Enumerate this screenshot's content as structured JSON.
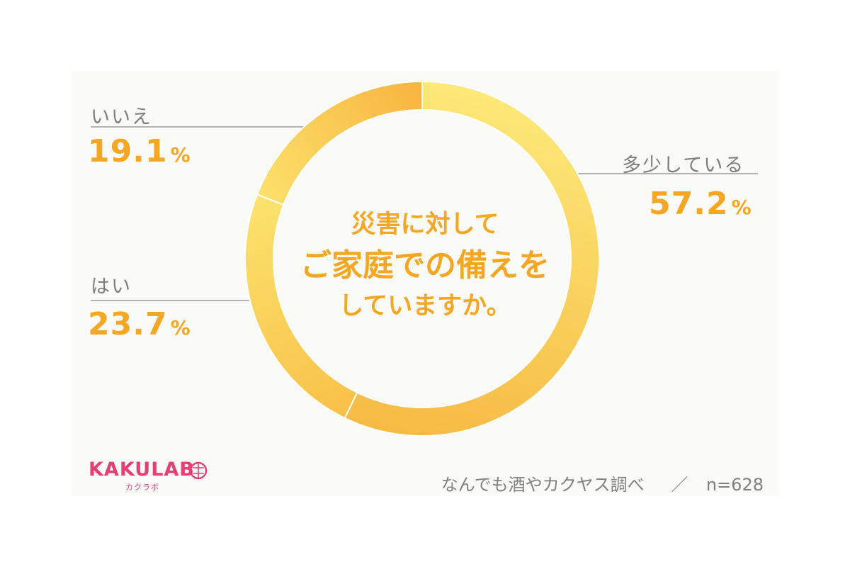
{
  "chart_data": {
    "type": "pie",
    "title": "災害に対して ご家庭での備えを していますか。",
    "center_lines": [
      "災害に対して",
      "ご家庭での備えを",
      "していますか。"
    ],
    "slices": [
      {
        "label": "多少している",
        "value": 57.2,
        "display": "57.2",
        "color_start": "#fde878",
        "color_end": "#f6bb44"
      },
      {
        "label": "はい",
        "value": 23.7,
        "display": "23.7",
        "color_start": "#f9c048",
        "color_end": "#fbe36e"
      },
      {
        "label": "いいえ",
        "value": 19.1,
        "display": "19.1",
        "color_start": "#fce16c",
        "color_end": "#f7b43f"
      }
    ],
    "unit": "%"
  },
  "footer": {
    "source": "なんでも酒やカクヤス調べ",
    "separator": "／",
    "sample": "n=628"
  },
  "logo": {
    "word": "KAKULAB",
    "sub": "カクラボ"
  },
  "colors": {
    "accent": "#f5a623",
    "label_gray": "#7d7d7d",
    "leader_gray": "#999999",
    "logo_pink": "#e63f73"
  }
}
